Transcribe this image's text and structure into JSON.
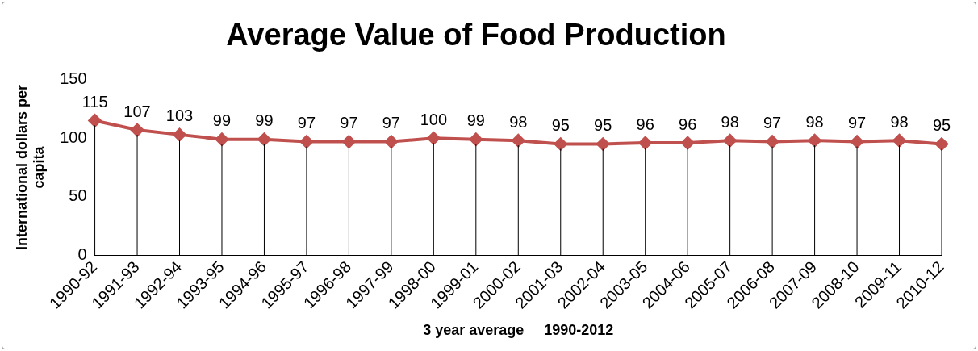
{
  "chart_data": {
    "type": "line",
    "title": "Average Value of Food Production",
    "xlabel": "3 year average     1990-2012",
    "ylabel": "International dollars per capita",
    "categories": [
      "1990-92",
      "1991-93",
      "1992-94",
      "1993-95",
      "1994-96",
      "1995-97",
      "1996-98",
      "1997-99",
      "1998-00",
      "1999-01",
      "2000-02",
      "2001-03",
      "2002-04",
      "2003-05",
      "2004-06",
      "2005-07",
      "2006-08",
      "2007-09",
      "2008-10",
      "2009-11",
      "2010-12"
    ],
    "series": [
      {
        "color": "#c0504d",
        "values": [
          115,
          107,
          103,
          99,
          99,
          97,
          97,
          97,
          100,
          99,
          98,
          95,
          95,
          96,
          96,
          98,
          97,
          98,
          97,
          98,
          95
        ]
      }
    ],
    "ylim": [
      0,
      150
    ],
    "yticks": [
      0,
      50,
      100,
      150
    ],
    "grid": false,
    "legend": false,
    "marker": "diamond",
    "line_style": "solid",
    "data_labels": true
  }
}
